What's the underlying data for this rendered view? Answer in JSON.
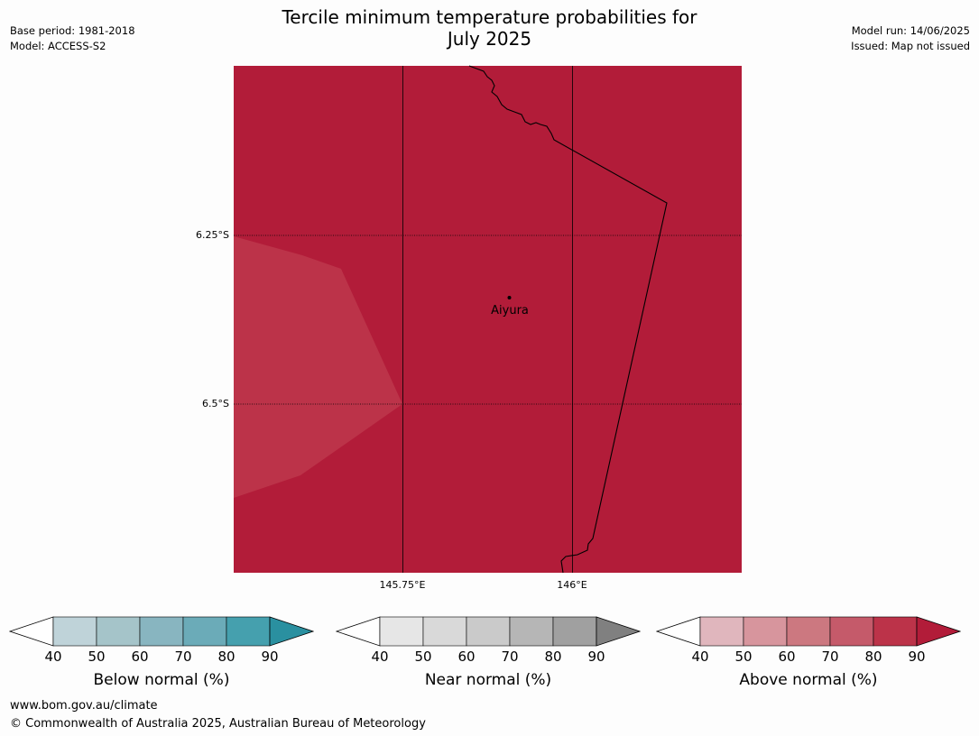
{
  "title_line1": "Tercile minimum temperature probabilities for",
  "title_line2": "July 2025",
  "base_period": "Base period: 1981-2018",
  "model": "Model: ACCESS-S2",
  "model_run": "Model run: 14/06/2025",
  "issued": "Issued: Map not issued",
  "map": {
    "lat_labels": [
      "6.25°S",
      "6.5°S"
    ],
    "lon_labels": [
      "145.75°E",
      "146°E"
    ],
    "place": "Aiyura",
    "field_colors": {
      "above_80_90": "#b21c39",
      "above_70_80": "#bc3349"
    }
  },
  "legends": [
    {
      "name": "Below normal (%)",
      "colors": [
        "#bfd3d9",
        "#a5c4c9",
        "#88b5c0",
        "#6babb8",
        "#45a0ae",
        "#2a90a0"
      ]
    },
    {
      "name": "Near normal (%)",
      "colors": [
        "#e6e6e6",
        "#d9d9d9",
        "#cacaca",
        "#b6b6b6",
        "#a0a0a0",
        "#808080"
      ]
    },
    {
      "name": "Above normal (%)",
      "colors": [
        "#e0b6bd",
        "#d7959d",
        "#cc7880",
        "#c55a6a",
        "#bc3349",
        "#b21c39"
      ]
    }
  ],
  "legend_ticks": [
    "40",
    "50",
    "60",
    "70",
    "80",
    "90"
  ],
  "footer_url": "www.bom.gov.au/climate",
  "footer_copyright": "© Commonwealth of Australia 2025, Australian Bureau of Meteorology"
}
